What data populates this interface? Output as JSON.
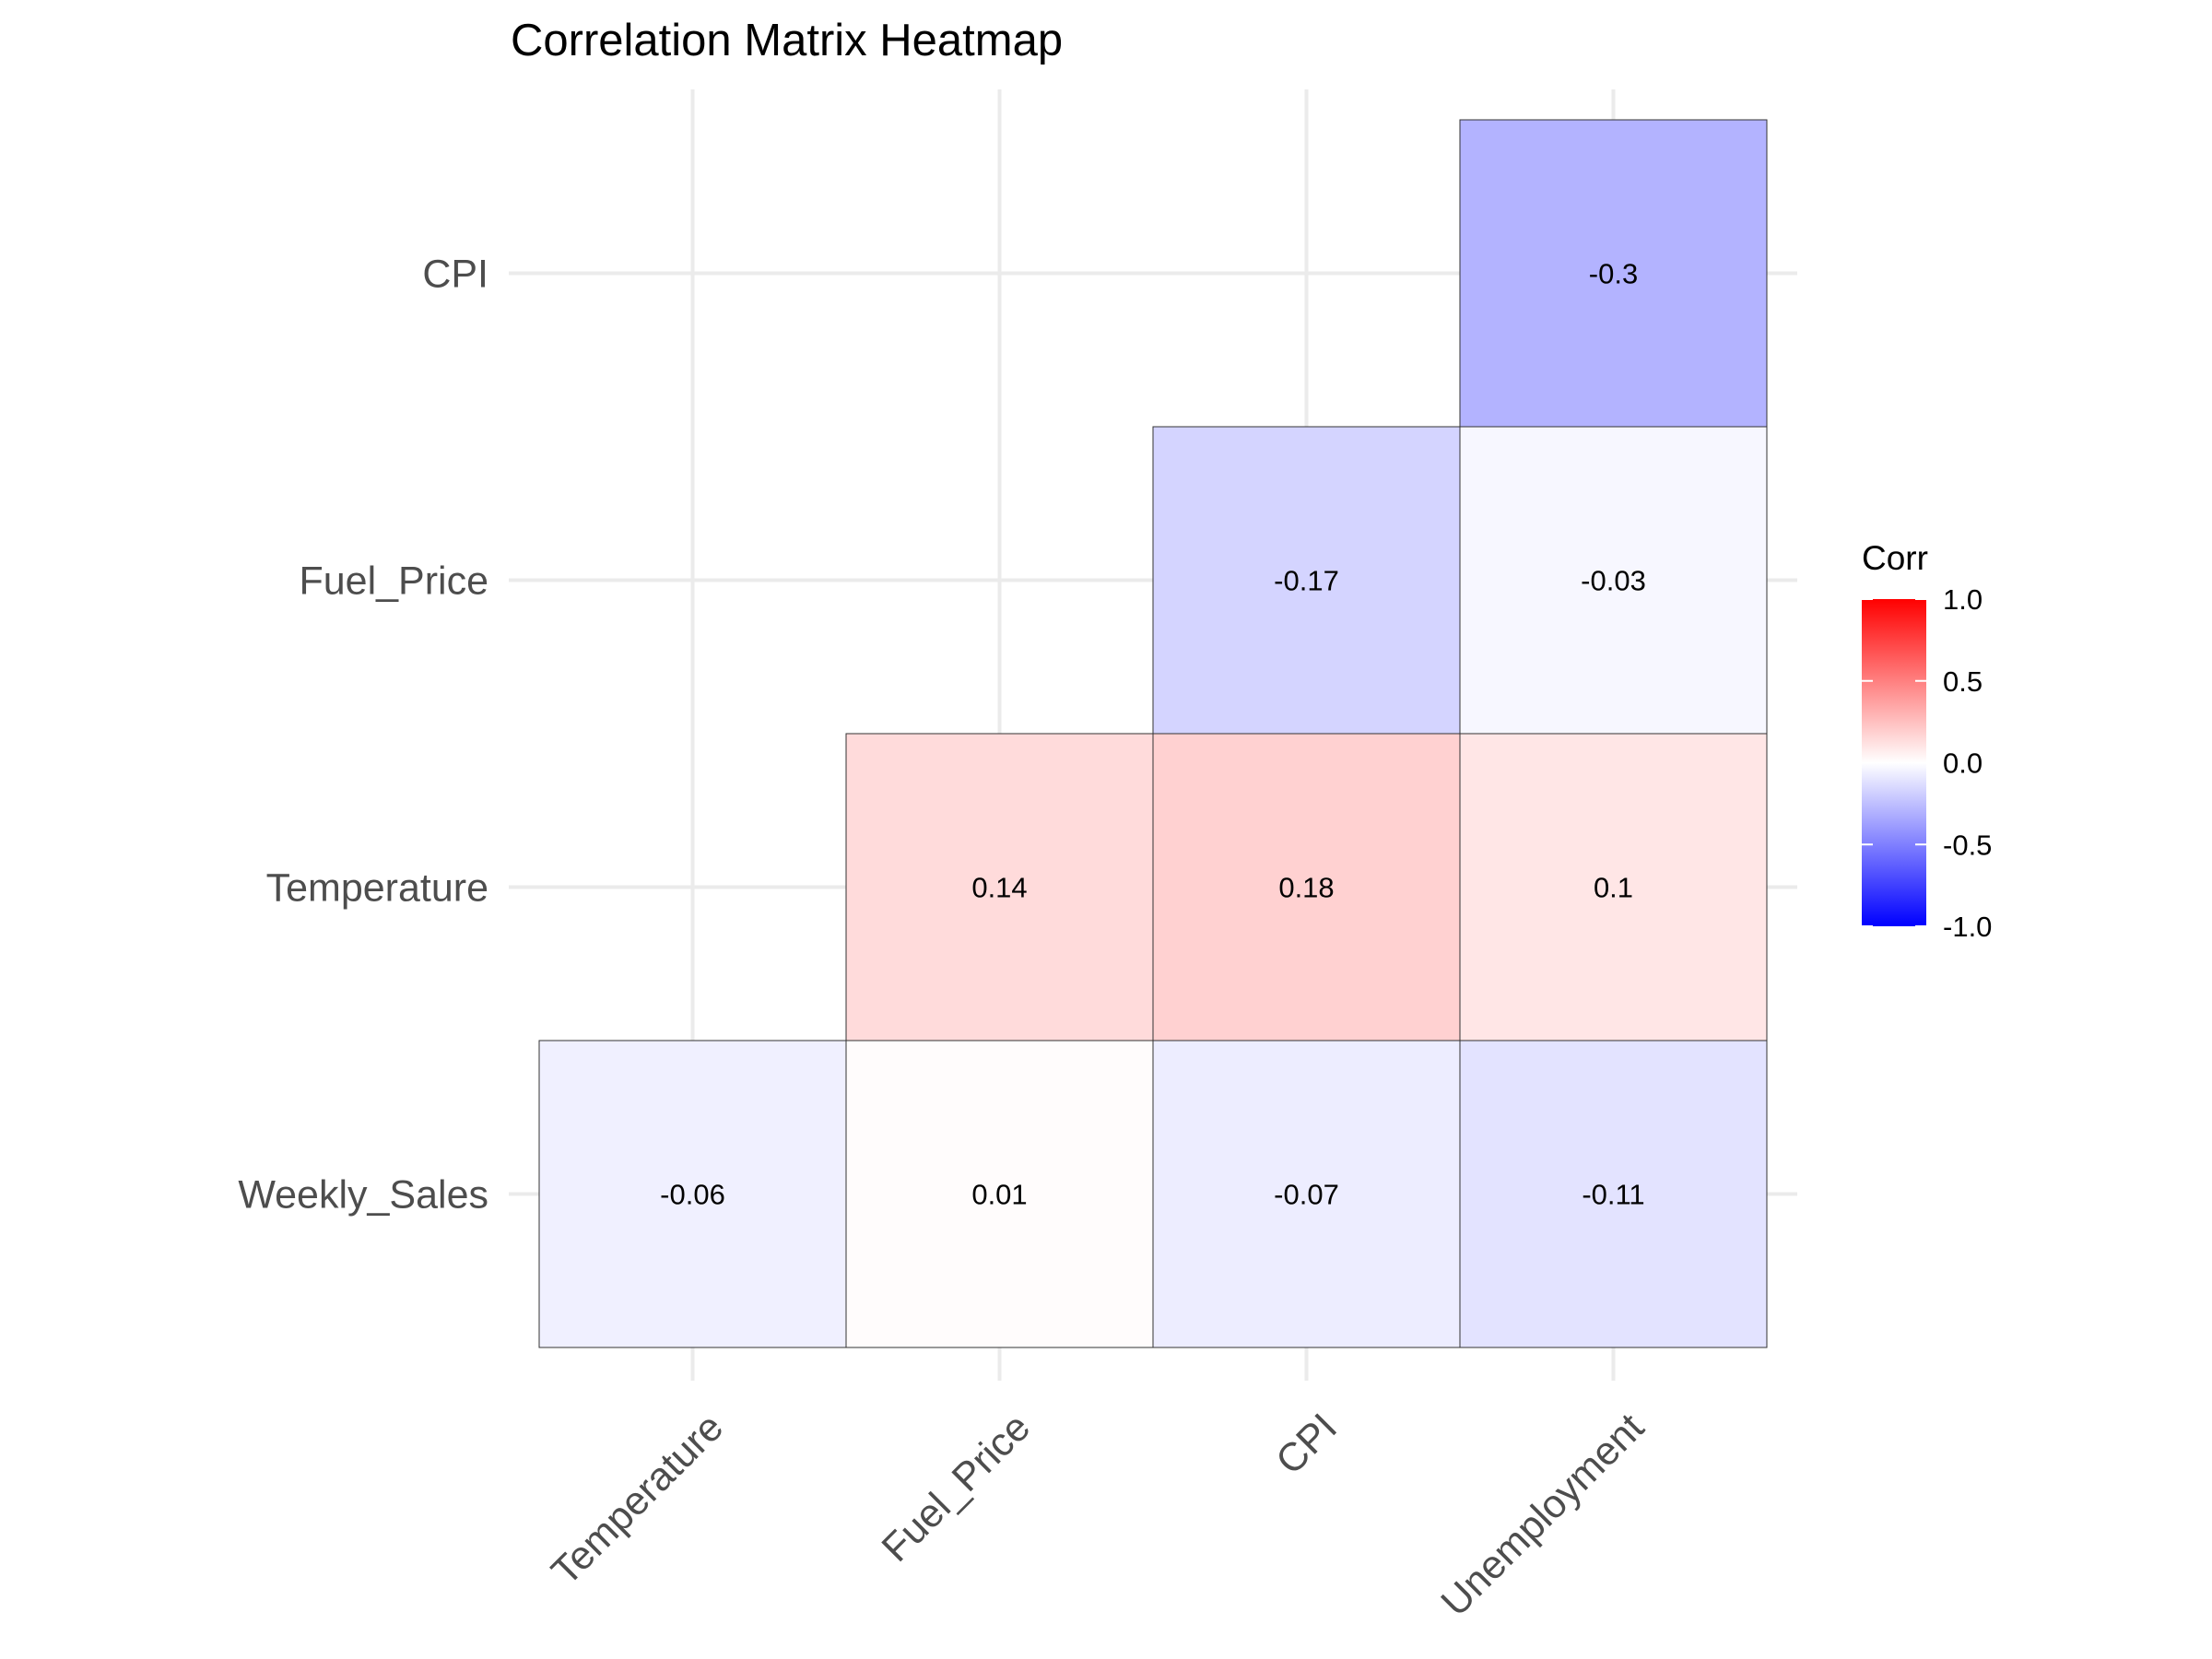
{
  "chart_data": {
    "type": "heatmap",
    "title": "Correlation Matrix Heatmap",
    "x_categories": [
      "Temperature",
      "Fuel_Price",
      "CPI",
      "Unemployment"
    ],
    "y_categories": [
      "Weekly_Sales",
      "Temperature",
      "Fuel_Price",
      "CPI"
    ],
    "cells": [
      {
        "x": "Temperature",
        "y": "Weekly_Sales",
        "value": -0.06,
        "label": "-0.06"
      },
      {
        "x": "Fuel_Price",
        "y": "Weekly_Sales",
        "value": 0.01,
        "label": "0.01"
      },
      {
        "x": "CPI",
        "y": "Weekly_Sales",
        "value": -0.07,
        "label": "-0.07"
      },
      {
        "x": "Unemployment",
        "y": "Weekly_Sales",
        "value": -0.11,
        "label": "-0.11"
      },
      {
        "x": "Fuel_Price",
        "y": "Temperature",
        "value": 0.14,
        "label": "0.14"
      },
      {
        "x": "CPI",
        "y": "Temperature",
        "value": 0.18,
        "label": "0.18"
      },
      {
        "x": "Unemployment",
        "y": "Temperature",
        "value": 0.1,
        "label": "0.1"
      },
      {
        "x": "CPI",
        "y": "Fuel_Price",
        "value": -0.17,
        "label": "-0.17"
      },
      {
        "x": "Unemployment",
        "y": "Fuel_Price",
        "value": -0.03,
        "label": "-0.03"
      },
      {
        "x": "Unemployment",
        "y": "CPI",
        "value": -0.3,
        "label": "-0.3"
      }
    ],
    "legend": {
      "title": "Corr",
      "range": [
        -1,
        1
      ],
      "ticks": [
        {
          "value": 1,
          "label": "1.0"
        },
        {
          "value": 0.5,
          "label": "0.5"
        },
        {
          "value": 0,
          "label": "0.0"
        },
        {
          "value": -0.5,
          "label": "-0.5"
        },
        {
          "value": -1,
          "label": "-1.0"
        }
      ],
      "low_color": "#0000ff",
      "mid_color": "#ffffff",
      "high_color": "#ff0000",
      "position": "right"
    },
    "grid": true
  }
}
